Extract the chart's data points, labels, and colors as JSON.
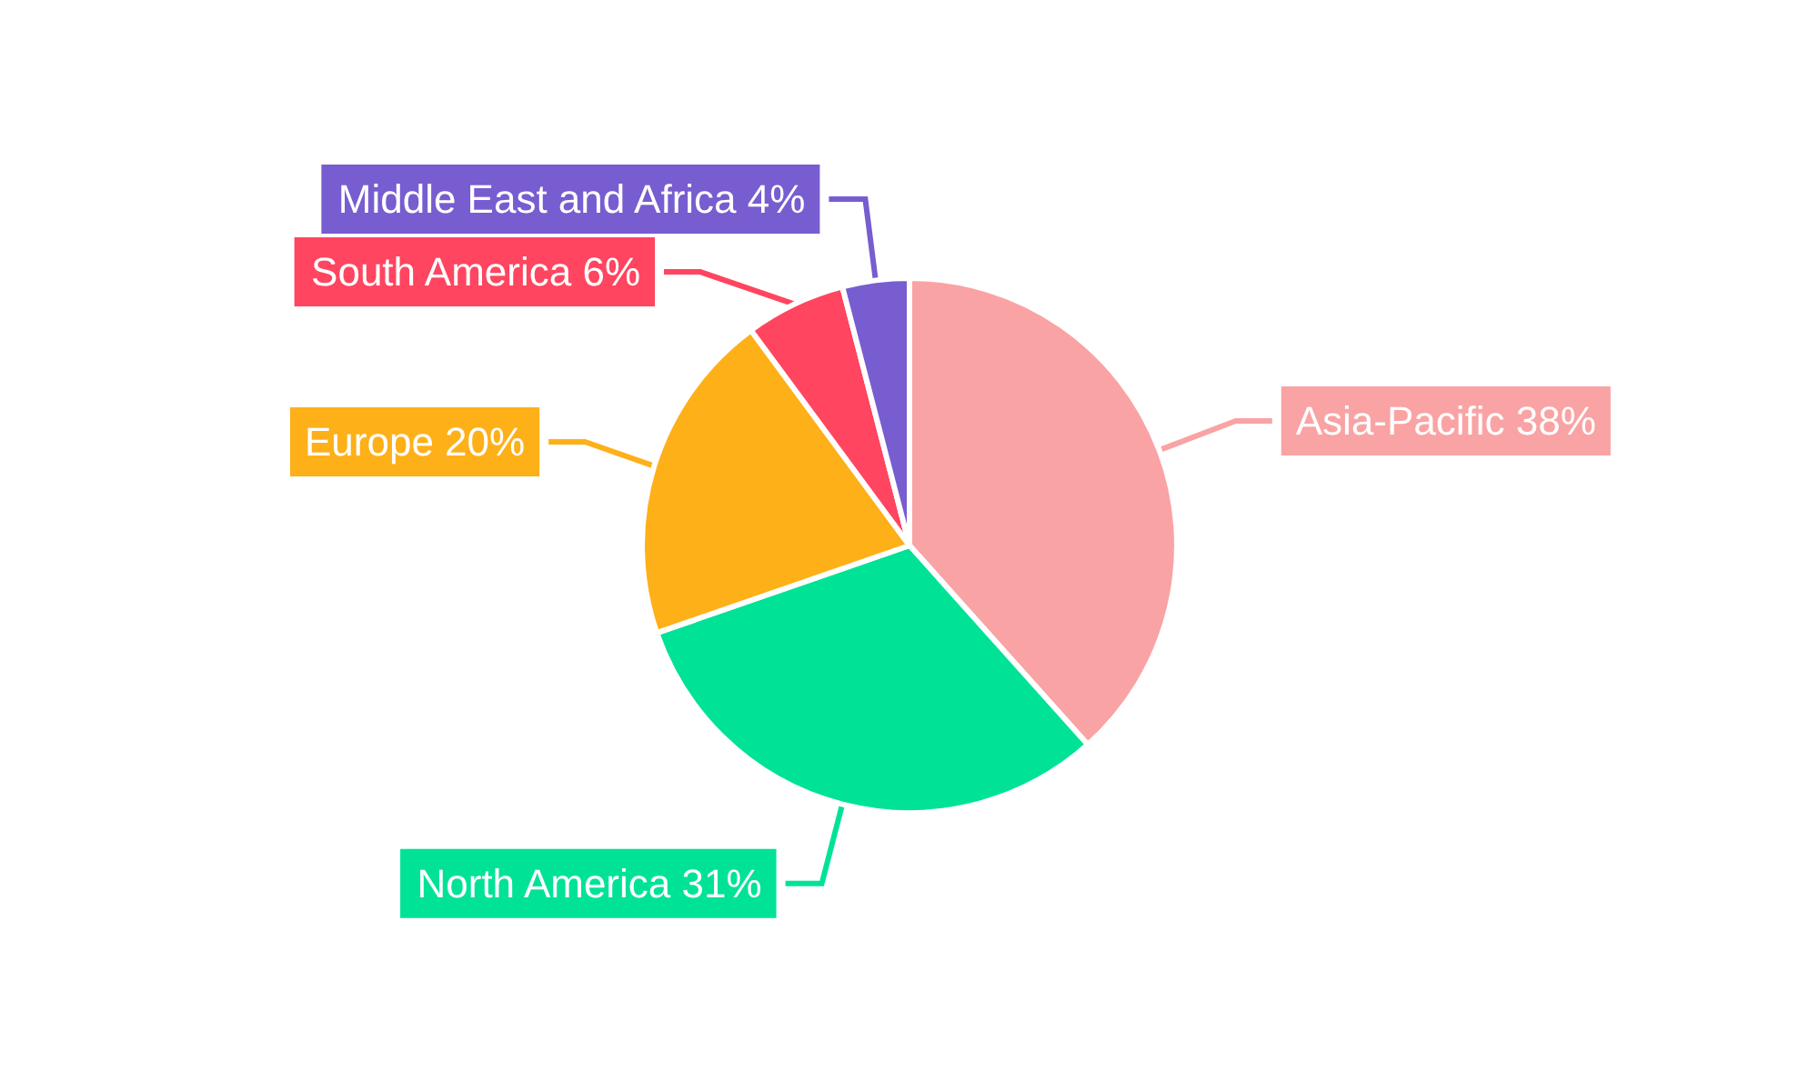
{
  "chart_data": {
    "type": "pie",
    "categories": [
      "Asia-Pacific",
      "North America",
      "Europe",
      "South America",
      "Middle East and Africa"
    ],
    "values": [
      38,
      31,
      20,
      6,
      4
    ],
    "colors": [
      "#f9a3a4",
      "#00e396",
      "#feb019",
      "#ff4560",
      "#775dd0"
    ],
    "value_labels": [
      "38%",
      "31%",
      "20%",
      "6%",
      "4%"
    ],
    "legend": false
  }
}
